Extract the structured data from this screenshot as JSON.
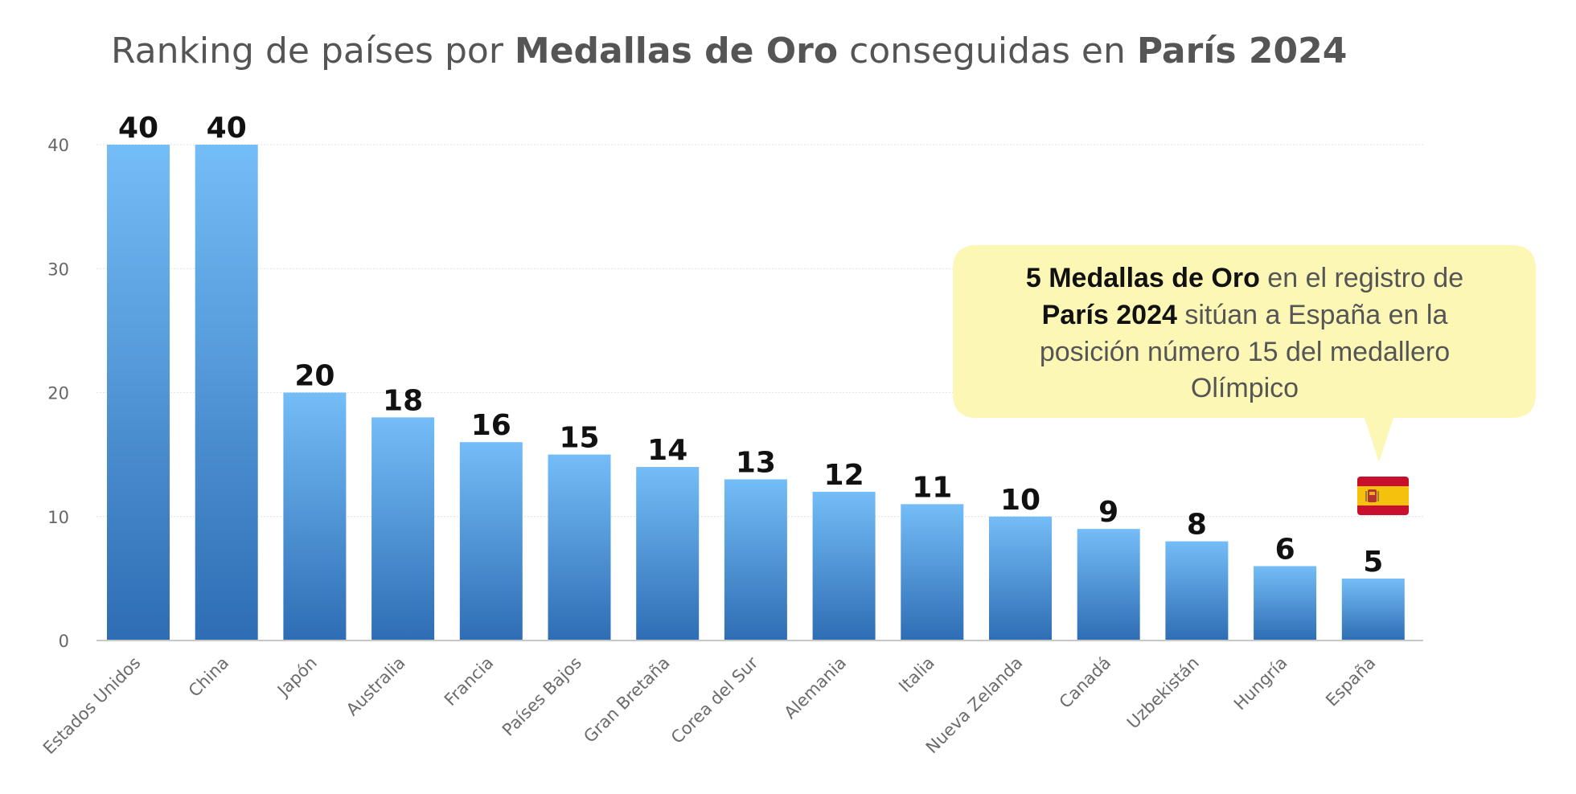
{
  "title": {
    "part1": "Ranking de países por ",
    "part2": "Medallas de Oro",
    "part3": " conseguidas en ",
    "part4": "París 2024"
  },
  "callout": {
    "line1_bold": "5 Medallas de Oro",
    "line1_rest": " en el registro de",
    "line2_bold": "París 2024",
    "line2_rest": " sitúan a España en la",
    "line3": "posición número 15 del medallero",
    "line4": "Olímpico",
    "background_color": "#fdf7b6",
    "flag_icon": "spain-flag-icon"
  },
  "colors": {
    "bar_top": "#74bdf7",
    "bar_bottom": "#2e6db4",
    "grid": "#e2e2e2",
    "axis": "#c8c8c8"
  },
  "chart_data": {
    "type": "bar",
    "categories": [
      "Estados Unidos",
      "China",
      "Japón",
      "Australia",
      "Francia",
      "Países Bajos",
      "Gran Bretaña",
      "Corea del Sur",
      "Alemania",
      "Italia",
      "Nueva Zelanda",
      "Canadá",
      "Uzbekistán",
      "Hungría",
      "España"
    ],
    "values": [
      40,
      40,
      20,
      18,
      16,
      15,
      14,
      13,
      12,
      11,
      10,
      9,
      8,
      6,
      5
    ],
    "yticks": [
      0,
      10,
      20,
      30,
      40
    ],
    "ylim": [
      0,
      40
    ],
    "grid": true,
    "xlabel": "",
    "ylabel": ""
  }
}
